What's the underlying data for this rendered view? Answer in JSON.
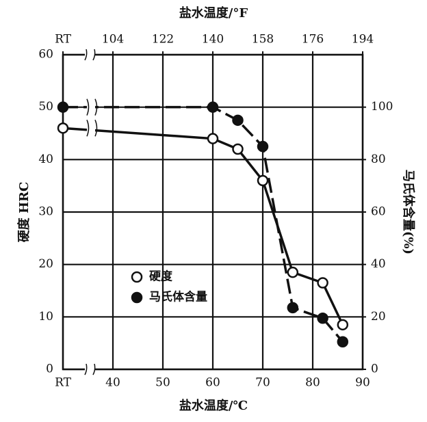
{
  "chart_data": {
    "type": "line",
    "x_title": "盐水温度/℃",
    "x2_title": "盐水温度/°F",
    "y_title": "硬度 HRC",
    "y2_title": "马氏体含量(%)",
    "x": [
      30,
      60,
      65,
      70,
      76,
      82,
      86
    ],
    "xlim": [
      30,
      90
    ],
    "xticks": [
      {
        "value": 30,
        "label": "RT"
      },
      40,
      50,
      60,
      70,
      80,
      90
    ],
    "x2lim": [
      86,
      194
    ],
    "x2ticks": [
      {
        "value": 86,
        "label": "RT"
      },
      104,
      122,
      140,
      158,
      176,
      194
    ],
    "ylim": [
      0,
      60
    ],
    "yticks": [
      0,
      10,
      20,
      30,
      40,
      50,
      60
    ],
    "y2lim": [
      0,
      120
    ],
    "y2ticks": [
      0,
      20,
      40,
      60,
      80,
      100
    ],
    "grid": true,
    "series": [
      {
        "name": "硬度",
        "color": "#111111",
        "marker": "open",
        "dash": false,
        "values": [
          46,
          44,
          42,
          36,
          18.5,
          16.5,
          8.5
        ]
      },
      {
        "name": "马氏体含量",
        "color": "#111111",
        "marker": "filled",
        "dash": true,
        "axis": "y2",
        "values": [
          100,
          100,
          95,
          85,
          23.5,
          19.5,
          10.5
        ]
      }
    ]
  }
}
